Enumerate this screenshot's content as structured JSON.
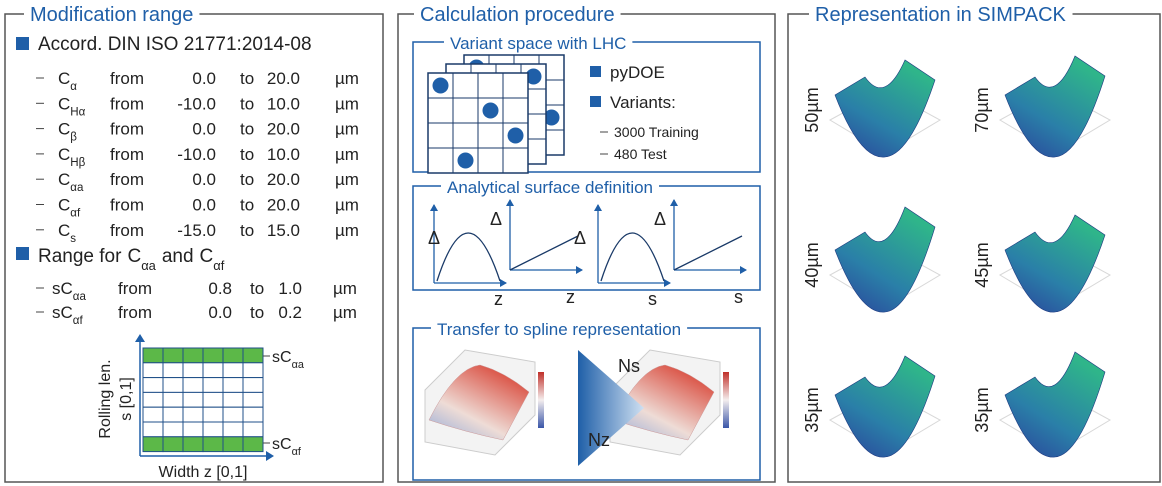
{
  "modification": {
    "title": "Modification range",
    "standard": "Accord. DIN ISO 21771:2014-08",
    "from": "from",
    "to": "to",
    "unit": "µm",
    "rows": [
      {
        "symbol": "C",
        "sub": "α",
        "min": "0.0",
        "max": "20.0"
      },
      {
        "symbol": "C",
        "sub": "Hα",
        "min": "-10.0",
        "max": "10.0"
      },
      {
        "symbol": "C",
        "sub": "β",
        "min": "0.0",
        "max": "20.0"
      },
      {
        "symbol": "C",
        "sub": "Hβ",
        "min": "-10.0",
        "max": "10.0"
      },
      {
        "symbol": "C",
        "sub": "αa",
        "min": "0.0",
        "max": "20.0"
      },
      {
        "symbol": "C",
        "sub": "αf",
        "min": "0.0",
        "max": "20.0"
      },
      {
        "symbol": "C",
        "sub": "s",
        "min": "-15.0",
        "max": "15.0"
      }
    ],
    "range_heading": {
      "text": "Range for",
      "a": {
        "symbol": "C",
        "sub": "αa"
      },
      "and": "and",
      "b": {
        "symbol": "C",
        "sub": "αf"
      }
    },
    "range_rows": [
      {
        "symbol": "sC",
        "sub": "αa",
        "min": "0.8",
        "max": "1.0"
      },
      {
        "symbol": "sC",
        "sub": "αf",
        "min": "0.0",
        "max": "0.2"
      }
    ],
    "grid": {
      "y_label": "Rolling len.",
      "y_range": "s [0,1]",
      "x_label": "Width z [0,1]",
      "top": {
        "symbol": "sC",
        "sub": "αa"
      },
      "bottom": {
        "symbol": "sC",
        "sub": "αf"
      }
    }
  },
  "procedure": {
    "title": "Calculation procedure",
    "lhc": {
      "title": "Variant space with LHC",
      "bullets": [
        "pyDOE",
        "Variants:"
      ],
      "variants": [
        "3000 Training",
        "480 Test"
      ]
    },
    "analytical": {
      "title": "Analytical surface definition",
      "plots": [
        {
          "y": "Δ",
          "x": "z"
        },
        {
          "y": "Δ",
          "x": "z"
        },
        {
          "y": "Δ",
          "x": "s"
        },
        {
          "y": "Δ",
          "x": "s"
        }
      ]
    },
    "spline": {
      "title": "Transfer to spline representation",
      "top": "Ns",
      "bottom": "Nz"
    }
  },
  "representation": {
    "title": "Representation in SIMPACK",
    "surfaces": [
      "50µm",
      "70µm",
      "40µm",
      "45µm",
      "35µm",
      "35µm"
    ]
  }
}
